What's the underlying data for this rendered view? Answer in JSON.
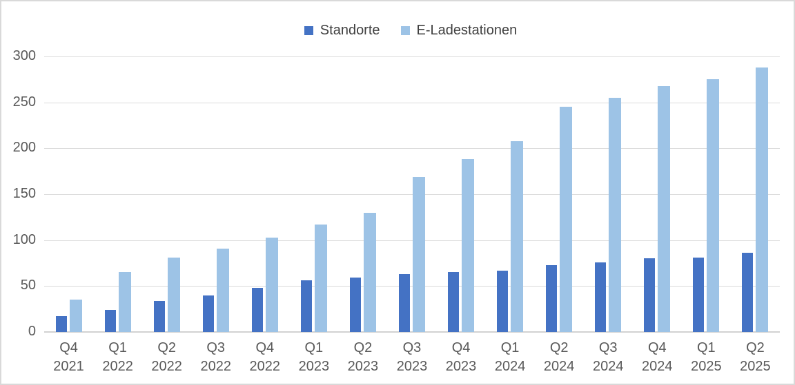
{
  "chart": {
    "background_color": "#ffffff",
    "frame_border_color": "#d9d9d9",
    "grid_color": "#d9d9d9",
    "axis_text_color": "#595959",
    "legend_text_color": "#404040"
  },
  "chart_data": {
    "type": "bar",
    "title": "",
    "categories": [
      "Q4 2021",
      "Q1 2022",
      "Q2 2022",
      "Q3 2022",
      "Q4 2022",
      "Q1 2023",
      "Q2 2023",
      "Q3 2023",
      "Q4 2023",
      "Q1 2024",
      "Q2 2024",
      "Q3 2024",
      "Q4 2024",
      "Q1 2025",
      "Q2 2025"
    ],
    "series": [
      {
        "name": "Standorte",
        "color": "#4472C4",
        "values": [
          17,
          24,
          34,
          40,
          48,
          56,
          59,
          63,
          65,
          67,
          73,
          76,
          80,
          81,
          86
        ]
      },
      {
        "name": "E-Ladestationen",
        "color": "#9DC3E6",
        "values": [
          35,
          65,
          81,
          91,
          103,
          117,
          130,
          169,
          188,
          208,
          245,
          255,
          268,
          275,
          288
        ]
      }
    ],
    "xlabel": "",
    "ylabel": "",
    "ylim": [
      0,
      300
    ],
    "yticks": [
      0,
      50,
      100,
      150,
      200,
      250,
      300
    ],
    "grid": true,
    "legend_position": "top"
  }
}
